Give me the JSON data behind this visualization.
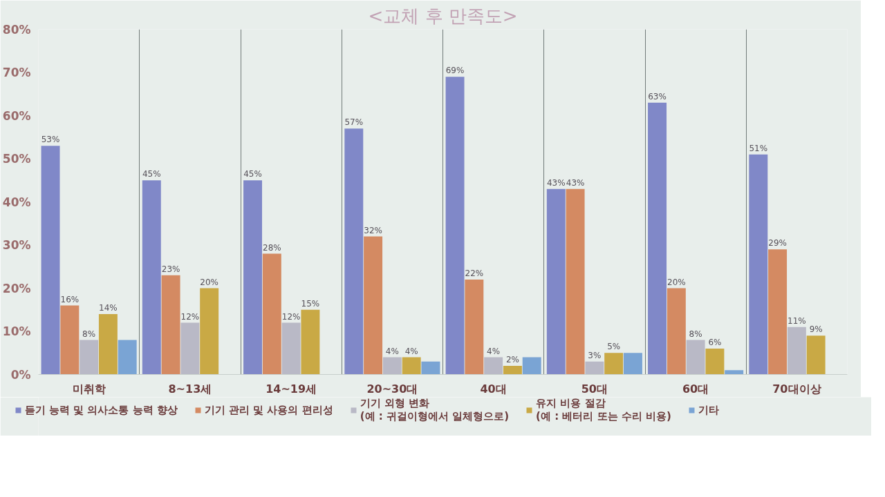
{
  "chart_data": {
    "type": "bar",
    "title": "<교체 후 만족도>",
    "categories": [
      "미취학",
      "8~13세",
      "14~19세",
      "20~30대",
      "40대",
      "50대",
      "60대",
      "70대이상"
    ],
    "series": [
      {
        "name": "듣기 능력 및 의사소통 능력 향상",
        "color": "#8088c8",
        "values": [
          53,
          45,
          45,
          57,
          69,
          43,
          63,
          51
        ],
        "value_labels": [
          "53%",
          "45%",
          "45%",
          "57%",
          "69%",
          "43%",
          "63%",
          "51%"
        ]
      },
      {
        "name": "기기 관리 및 사용의 편리성",
        "color": "#d48a62",
        "values": [
          16,
          23,
          28,
          32,
          22,
          43,
          20,
          29
        ],
        "value_labels": [
          "16%",
          "23%",
          "28%",
          "32%",
          "22%",
          "43%",
          "20%",
          "29%"
        ]
      },
      {
        "name": "기기 외형 변화\n(예 : 귀걸이형에서 일체형으로)",
        "color": "#b9b9c6",
        "values": [
          8,
          12,
          12,
          4,
          4,
          3,
          8,
          11
        ],
        "value_labels": [
          "8%",
          "12%",
          "12%",
          "4%",
          "4%",
          "3%",
          "8%",
          "11%"
        ]
      },
      {
        "name": "유지 비용 절감\n(예 : 베터리 또는 수리 비용)",
        "color": "#c9a945",
        "values": [
          14,
          20,
          15,
          4,
          2,
          5,
          6,
          9
        ],
        "value_labels": [
          "14%",
          "20%",
          "15%",
          "4%",
          "2%",
          "5%",
          "6%",
          "9%"
        ]
      },
      {
        "name": "기타",
        "color": "#7aa4d4",
        "values": [
          8,
          null,
          null,
          3,
          4,
          5,
          1,
          null
        ]
      }
    ],
    "ylim": [
      0,
      80
    ],
    "yticks": [
      {
        "value": 0,
        "label": "0%"
      },
      {
        "value": 10,
        "label": "10%"
      },
      {
        "value": 20,
        "label": "20%"
      },
      {
        "value": 30,
        "label": "30%"
      },
      {
        "value": 40,
        "label": "40%"
      },
      {
        "value": 50,
        "label": "50%"
      },
      {
        "value": 60,
        "label": "60%"
      },
      {
        "value": 70,
        "label": "70%"
      },
      {
        "value": 80,
        "label": "80%"
      }
    ],
    "grid": "x",
    "legend": "bottom"
  }
}
